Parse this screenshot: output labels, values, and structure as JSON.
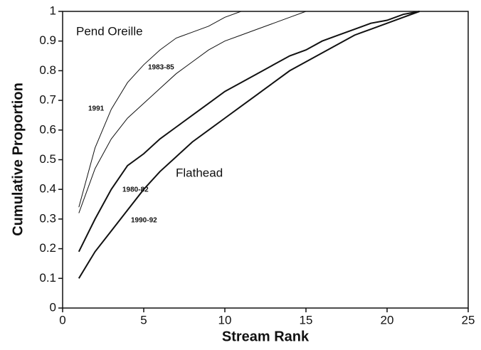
{
  "chart_data": {
    "type": "line",
    "xlabel": "Stream Rank",
    "ylabel": "Cumulative Proportion",
    "annotations": [
      "Pend Oreille",
      "Flathead"
    ],
    "xlim": [
      0,
      25
    ],
    "xticks": [
      0,
      5,
      10,
      15,
      20,
      25
    ],
    "ylim": [
      0,
      1
    ],
    "yticks": [
      0,
      0.1,
      0.2,
      0.3,
      0.4,
      0.5,
      0.6,
      0.7,
      0.8,
      0.9,
      1
    ],
    "series": [
      {
        "name": "1991",
        "color": "#111111",
        "x": [
          1,
          2,
          3,
          4,
          5,
          6,
          7,
          8,
          9,
          10,
          11
        ],
        "values": [
          0.34,
          0.54,
          0.67,
          0.76,
          0.82,
          0.87,
          0.91,
          0.93,
          0.95,
          0.98,
          1.0
        ]
      },
      {
        "name": "1983-85",
        "color": "#111111",
        "x": [
          1,
          2,
          3,
          4,
          5,
          6,
          7,
          8,
          9,
          10,
          11,
          12,
          13,
          14,
          15
        ],
        "values": [
          0.32,
          0.47,
          0.57,
          0.64,
          0.69,
          0.74,
          0.79,
          0.83,
          0.87,
          0.9,
          0.92,
          0.94,
          0.96,
          0.98,
          1.0
        ]
      },
      {
        "name": "1980-82",
        "color": "#111111",
        "x": [
          1,
          2,
          3,
          4,
          5,
          6,
          7,
          8,
          9,
          10,
          11,
          12,
          13,
          14,
          15,
          16,
          17,
          18,
          19,
          20,
          21,
          22
        ],
        "values": [
          0.19,
          0.3,
          0.4,
          0.48,
          0.52,
          0.57,
          0.61,
          0.65,
          0.69,
          0.73,
          0.76,
          0.79,
          0.82,
          0.85,
          0.87,
          0.9,
          0.92,
          0.94,
          0.96,
          0.97,
          0.99,
          1.0
        ]
      },
      {
        "name": "1990-92",
        "color": "#111111",
        "x": [
          1,
          2,
          3,
          4,
          5,
          6,
          7,
          8,
          9,
          10,
          11,
          12,
          13,
          14,
          15,
          16,
          17,
          18,
          19,
          20,
          21,
          22
        ],
        "values": [
          0.1,
          0.19,
          0.26,
          0.33,
          0.4,
          0.46,
          0.51,
          0.56,
          0.6,
          0.64,
          0.68,
          0.72,
          0.76,
          0.8,
          0.83,
          0.86,
          0.89,
          0.92,
          0.94,
          0.96,
          0.98,
          1.0
        ]
      }
    ]
  }
}
